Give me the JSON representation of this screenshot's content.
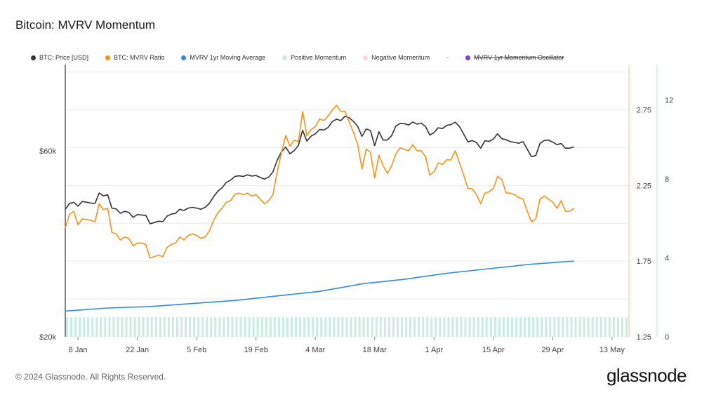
{
  "page": {
    "title": "Bitcoin: MVRV Momentum",
    "copyright": "© 2024 Glassnode. All Rights Reserved.",
    "brand": "glassnode"
  },
  "legend": {
    "items": [
      {
        "label": "BTC: Price [USD]",
        "color": "#333333",
        "strike": false
      },
      {
        "label": "BTC: MVRV Ratio",
        "color": "#f7931a",
        "strike": false
      },
      {
        "label": "MVRV 1yr Moving Average",
        "color": "#2f8ae5",
        "strike": false
      },
      {
        "label": "Positive Momentum",
        "color": "#c9ede0",
        "strike": false
      },
      {
        "label": "Negative Momentum",
        "color": "#f9d6d2",
        "strike": false
      },
      {
        "label": "MVRV 1yr Momentum Oscillator",
        "color": "#7b3fe4",
        "strike": true
      }
    ],
    "dash": "-"
  },
  "chart_data": {
    "type": "line",
    "title": "Bitcoin: MVRV Momentum",
    "x_ticks": [
      "8 Jan",
      "22 Jan",
      "5 Feb",
      "19 Feb",
      "4 Mar",
      "18 Mar",
      "1 Apr",
      "15 Apr",
      "29 Apr",
      "13 May"
    ],
    "x_range_days": [
      0,
      133
    ],
    "price_axis": {
      "ticks": [
        "$20k",
        "$60k"
      ],
      "scale": "log",
      "range": [
        20000,
        100000
      ]
    },
    "mvrv_axis": {
      "ticks": [
        "1.25",
        "1.75",
        "2.25",
        "2.75"
      ],
      "range": [
        1.25,
        3.05
      ]
    },
    "oscillator_axis": {
      "ticks": [
        "0",
        "4",
        "8",
        "12"
      ],
      "range": [
        0,
        13.8
      ]
    },
    "series": [
      {
        "name": "BTC: Price [USD]",
        "color": "#333333",
        "axis": "price",
        "values": [
          [
            0,
            42500
          ],
          [
            1,
            44000
          ],
          [
            2,
            44300
          ],
          [
            3,
            43300
          ],
          [
            4,
            44500
          ],
          [
            6,
            44100
          ],
          [
            7,
            44000
          ],
          [
            8,
            46800
          ],
          [
            9,
            46000
          ],
          [
            10,
            46300
          ],
          [
            11,
            42800
          ],
          [
            12,
            42600
          ],
          [
            13,
            41500
          ],
          [
            14,
            42000
          ],
          [
            15,
            41700
          ],
          [
            16,
            40500
          ],
          [
            17,
            41200
          ],
          [
            18,
            41100
          ],
          [
            19,
            41000
          ],
          [
            20,
            39000
          ],
          [
            21,
            39300
          ],
          [
            22,
            39600
          ],
          [
            23,
            39500
          ],
          [
            24,
            40800
          ],
          [
            25,
            41300
          ],
          [
            26,
            41500
          ],
          [
            27,
            42500
          ],
          [
            28,
            42200
          ],
          [
            29,
            42800
          ],
          [
            30,
            43000
          ],
          [
            31,
            42800
          ],
          [
            32,
            42500
          ],
          [
            33,
            43000
          ],
          [
            34,
            44000
          ],
          [
            35,
            45800
          ],
          [
            36,
            47300
          ],
          [
            37,
            48300
          ],
          [
            38,
            49800
          ],
          [
            39,
            50500
          ],
          [
            40,
            51600
          ],
          [
            41,
            51800
          ],
          [
            42,
            51600
          ],
          [
            43,
            52100
          ],
          [
            44,
            51700
          ],
          [
            45,
            51900
          ],
          [
            46,
            51300
          ],
          [
            47,
            50800
          ],
          [
            48,
            51400
          ],
          [
            49,
            53000
          ],
          [
            50,
            56800
          ],
          [
            51,
            59700
          ],
          [
            52,
            61400
          ],
          [
            53,
            59000
          ],
          [
            54,
            60100
          ],
          [
            55,
            62000
          ],
          [
            56,
            67800
          ],
          [
            57,
            63600
          ],
          [
            58,
            65500
          ],
          [
            59,
            66400
          ],
          [
            60,
            68100
          ],
          [
            61,
            67900
          ],
          [
            62,
            68900
          ],
          [
            63,
            71400
          ],
          [
            64,
            72400
          ],
          [
            65,
            71800
          ],
          [
            66,
            73700
          ],
          [
            67,
            73000
          ],
          [
            68,
            71400
          ],
          [
            69,
            69400
          ],
          [
            70,
            65400
          ],
          [
            71,
            68300
          ],
          [
            72,
            67700
          ],
          [
            73,
            61900
          ],
          [
            74,
            67200
          ],
          [
            75,
            64000
          ],
          [
            76,
            64000
          ],
          [
            77,
            65700
          ],
          [
            78,
            69500
          ],
          [
            79,
            70600
          ],
          [
            80,
            70500
          ],
          [
            81,
            69900
          ],
          [
            82,
            71200
          ],
          [
            83,
            70300
          ],
          [
            84,
            70700
          ],
          [
            85,
            69300
          ],
          [
            86,
            65900
          ],
          [
            87,
            66900
          ],
          [
            88,
            68800
          ],
          [
            89,
            68500
          ],
          [
            90,
            69800
          ],
          [
            91,
            70100
          ],
          [
            92,
            71100
          ],
          [
            93,
            69300
          ],
          [
            94,
            66300
          ],
          [
            95,
            63300
          ],
          [
            96,
            63800
          ],
          [
            97,
            63100
          ],
          [
            98,
            61000
          ],
          [
            99,
            63700
          ],
          [
            100,
            63500
          ],
          [
            101,
            64400
          ],
          [
            102,
            66400
          ],
          [
            103,
            64500
          ],
          [
            104,
            64100
          ],
          [
            105,
            63400
          ],
          [
            106,
            63100
          ],
          [
            107,
            62800
          ],
          [
            108,
            63400
          ],
          [
            109,
            60600
          ],
          [
            110,
            58000
          ],
          [
            111,
            58400
          ],
          [
            112,
            62700
          ],
          [
            113,
            63800
          ],
          [
            114,
            64000
          ],
          [
            115,
            63200
          ],
          [
            116,
            62300
          ],
          [
            117,
            62700
          ],
          [
            118,
            61000
          ],
          [
            119,
            61000
          ],
          [
            120,
            61500
          ]
        ]
      },
      {
        "name": "BTC: MVRV Ratio",
        "color": "#f7931a",
        "axis": "mvrv",
        "values": [
          [
            0,
            1.97
          ],
          [
            1,
            2.06
          ],
          [
            2,
            2.08
          ],
          [
            3,
            1.99
          ],
          [
            4,
            2.03
          ],
          [
            6,
            2.02
          ],
          [
            7,
            2.01
          ],
          [
            8,
            2.13
          ],
          [
            9,
            2.09
          ],
          [
            10,
            2.1
          ],
          [
            11,
            1.94
          ],
          [
            12,
            1.93
          ],
          [
            13,
            1.89
          ],
          [
            14,
            1.91
          ],
          [
            15,
            1.9
          ],
          [
            16,
            1.85
          ],
          [
            17,
            1.87
          ],
          [
            18,
            1.87
          ],
          [
            19,
            1.86
          ],
          [
            20,
            1.77
          ],
          [
            21,
            1.78
          ],
          [
            22,
            1.79
          ],
          [
            23,
            1.78
          ],
          [
            24,
            1.84
          ],
          [
            25,
            1.86
          ],
          [
            26,
            1.87
          ],
          [
            27,
            1.91
          ],
          [
            28,
            1.89
          ],
          [
            29,
            1.92
          ],
          [
            30,
            1.93
          ],
          [
            31,
            1.92
          ],
          [
            32,
            1.9
          ],
          [
            33,
            1.91
          ],
          [
            34,
            1.95
          ],
          [
            35,
            2.02
          ],
          [
            36,
            2.07
          ],
          [
            37,
            2.1
          ],
          [
            38,
            2.14
          ],
          [
            39,
            2.15
          ],
          [
            40,
            2.19
          ],
          [
            41,
            2.2
          ],
          [
            42,
            2.19
          ],
          [
            43,
            2.2
          ],
          [
            44,
            2.18
          ],
          [
            45,
            2.19
          ],
          [
            46,
            2.16
          ],
          [
            47,
            2.13
          ],
          [
            48,
            2.15
          ],
          [
            49,
            2.19
          ],
          [
            50,
            2.34
          ],
          [
            51,
            2.47
          ],
          [
            52,
            2.58
          ],
          [
            53,
            2.51
          ],
          [
            54,
            2.55
          ],
          [
            55,
            2.54
          ],
          [
            56,
            2.74
          ],
          [
            57,
            2.58
          ],
          [
            58,
            2.62
          ],
          [
            59,
            2.64
          ],
          [
            60,
            2.69
          ],
          [
            61,
            2.68
          ],
          [
            62,
            2.71
          ],
          [
            63,
            2.75
          ],
          [
            64,
            2.78
          ],
          [
            65,
            2.74
          ],
          [
            66,
            2.74
          ],
          [
            67,
            2.67
          ],
          [
            68,
            2.6
          ],
          [
            69,
            2.52
          ],
          [
            70,
            2.36
          ],
          [
            71,
            2.49
          ],
          [
            72,
            2.47
          ],
          [
            73,
            2.3
          ],
          [
            74,
            2.45
          ],
          [
            75,
            2.38
          ],
          [
            76,
            2.33
          ],
          [
            77,
            2.38
          ],
          [
            78,
            2.46
          ],
          [
            79,
            2.5
          ],
          [
            80,
            2.49
          ],
          [
            81,
            2.48
          ],
          [
            82,
            2.52
          ],
          [
            83,
            2.48
          ],
          [
            84,
            2.48
          ],
          [
            85,
            2.44
          ],
          [
            86,
            2.32
          ],
          [
            87,
            2.34
          ],
          [
            88,
            2.4
          ],
          [
            89,
            2.39
          ],
          [
            90,
            2.42
          ],
          [
            91,
            2.42
          ],
          [
            92,
            2.48
          ],
          [
            93,
            2.4
          ],
          [
            94,
            2.32
          ],
          [
            95,
            2.23
          ],
          [
            96,
            2.23
          ],
          [
            97,
            2.19
          ],
          [
            98,
            2.13
          ],
          [
            99,
            2.2
          ],
          [
            100,
            2.21
          ],
          [
            101,
            2.23
          ],
          [
            102,
            2.31
          ],
          [
            103,
            2.29
          ],
          [
            104,
            2.2
          ],
          [
            105,
            2.2
          ],
          [
            106,
            2.19
          ],
          [
            107,
            2.17
          ],
          [
            108,
            2.16
          ],
          [
            109,
            2.08
          ],
          [
            110,
            2.01
          ],
          [
            111,
            2.03
          ],
          [
            112,
            2.16
          ],
          [
            113,
            2.18
          ],
          [
            114,
            2.16
          ],
          [
            115,
            2.14
          ],
          [
            116,
            2.1
          ],
          [
            117,
            2.15
          ],
          [
            118,
            2.08
          ],
          [
            119,
            2.08
          ],
          [
            120,
            2.1
          ]
        ]
      },
      {
        "name": "MVRV 1yr Moving Average",
        "color": "#2f8ae5",
        "axis": "mvrv",
        "values": [
          [
            0,
            1.42
          ],
          [
            10,
            1.44
          ],
          [
            20,
            1.45
          ],
          [
            30,
            1.47
          ],
          [
            40,
            1.49
          ],
          [
            50,
            1.52
          ],
          [
            60,
            1.55
          ],
          [
            70,
            1.6
          ],
          [
            80,
            1.63
          ],
          [
            90,
            1.67
          ],
          [
            100,
            1.7
          ],
          [
            110,
            1.73
          ],
          [
            120,
            1.75
          ]
        ]
      },
      {
        "name": "Positive Momentum",
        "color": "#c9ede0",
        "axis": "oscillator",
        "kind": "bars",
        "value": 1.0
      }
    ]
  }
}
